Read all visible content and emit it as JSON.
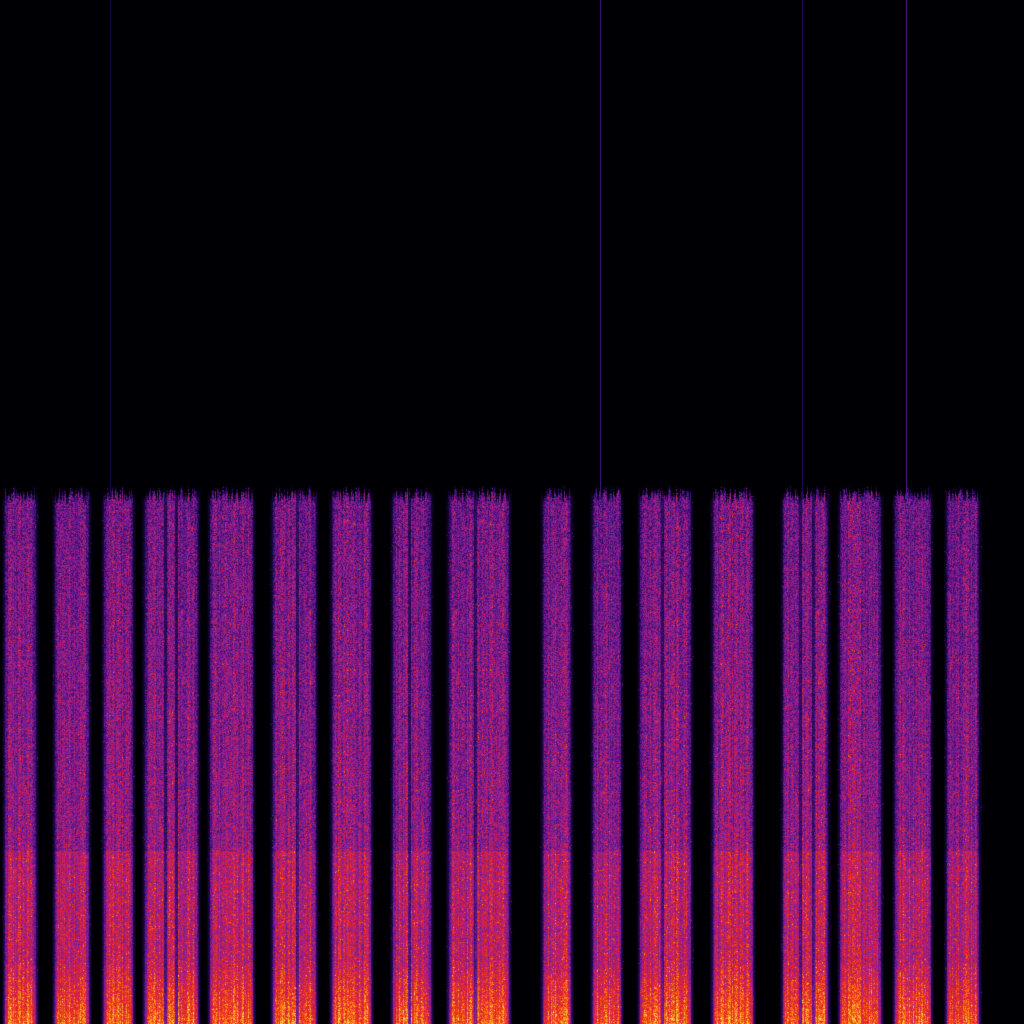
{
  "spectrogram": {
    "colormap": [
      "#000004",
      "#2a0a5e",
      "#6a1a9a",
      "#b0207a",
      "#e8202a",
      "#f86010",
      "#fcb020",
      "#fcf080"
    ],
    "background": "#000000"
  }
}
